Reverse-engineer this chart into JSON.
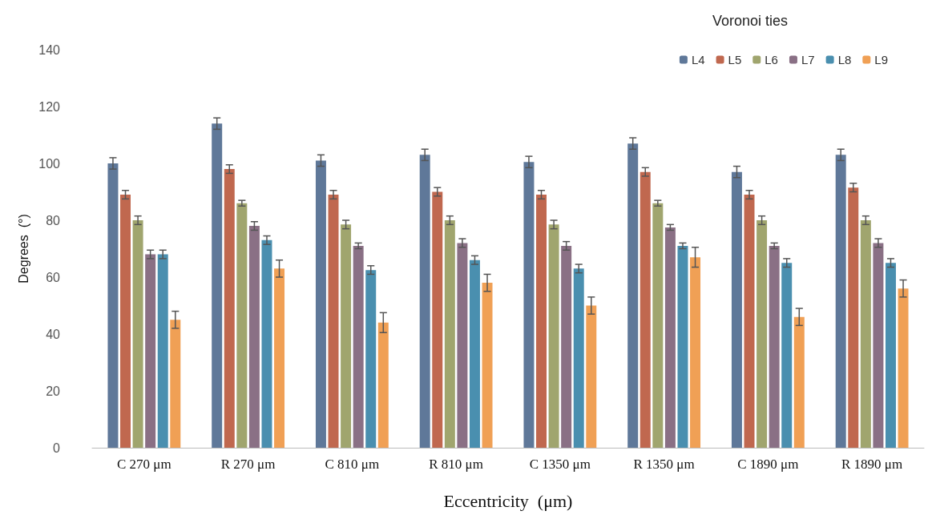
{
  "chart_data": {
    "type": "bar",
    "legend_title": "Voronoi ties",
    "ylabel": "Degrees  (°)",
    "xlabel": "Eccentricity  (μm)",
    "categories": [
      "C 270 μm",
      "R 270 μm",
      "C 810 μm",
      "R 810 μm",
      "C 1350 μm",
      "R 1350 μm",
      "C 1890 μm",
      "R 1890 μm"
    ],
    "series": [
      {
        "name": "L4",
        "color": "#5f7899",
        "values": [
          100,
          114,
          101,
          103,
          100.5,
          107,
          97,
          103
        ],
        "errors": [
          2,
          2,
          2,
          2,
          2,
          2,
          2,
          2
        ]
      },
      {
        "name": "L5",
        "color": "#c0684f",
        "values": [
          89,
          98,
          89,
          90,
          89,
          97,
          89,
          91.5
        ],
        "errors": [
          1.5,
          1.5,
          1.5,
          1.5,
          1.5,
          1.5,
          1.5,
          1.5
        ]
      },
      {
        "name": "L6",
        "color": "#a0a56e",
        "values": [
          80,
          86,
          78.5,
          80,
          78.5,
          86,
          80,
          80
        ],
        "errors": [
          1.5,
          1,
          1.5,
          1.5,
          1.5,
          1,
          1.5,
          1.5
        ]
      },
      {
        "name": "L7",
        "color": "#8a7085",
        "values": [
          68,
          78,
          71,
          72,
          71,
          77.5,
          71,
          72
        ],
        "errors": [
          1.5,
          1.5,
          1,
          1.5,
          1.5,
          1,
          1,
          1.5
        ]
      },
      {
        "name": "L8",
        "color": "#4a8faf",
        "values": [
          68,
          73,
          62.5,
          66,
          63,
          71,
          65,
          65
        ],
        "errors": [
          1.5,
          1.5,
          1.5,
          1.5,
          1.5,
          1,
          1.5,
          1.5
        ]
      },
      {
        "name": "L9",
        "color": "#f0a055",
        "values": [
          45,
          63,
          44,
          58,
          50,
          67,
          46,
          56
        ],
        "errors": [
          3,
          3,
          3.5,
          3,
          3,
          3.5,
          3,
          3
        ]
      }
    ],
    "ylim": [
      0,
      140
    ],
    "yticks": [
      0,
      20,
      40,
      60,
      80,
      100,
      120,
      140
    ],
    "grid": false,
    "legend": "top right"
  }
}
